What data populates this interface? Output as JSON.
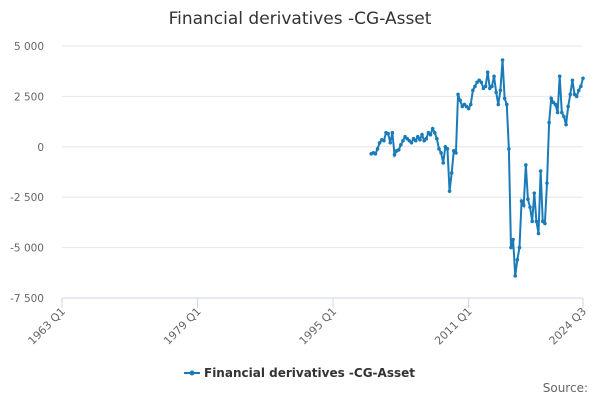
{
  "chart_data": {
    "type": "line",
    "title": "Financial derivatives -CG-Asset",
    "categories": [
      "1963 Q1",
      null,
      null,
      null,
      null,
      null,
      null,
      null,
      null,
      null,
      null,
      null,
      null,
      null,
      null,
      null,
      null,
      null,
      null,
      null,
      null,
      null,
      null,
      null,
      null,
      null,
      null,
      null,
      null,
      null,
      null,
      null,
      null,
      null,
      null,
      null,
      null,
      null,
      null,
      null,
      null,
      null,
      null,
      null,
      null,
      null,
      null,
      null,
      null,
      null,
      null,
      null,
      null,
      null,
      null,
      null,
      null,
      null,
      null,
      null,
      null,
      null,
      null,
      null,
      "1979 Q1",
      null,
      null,
      null,
      null,
      null,
      null,
      null,
      null,
      null,
      null,
      null,
      null,
      null,
      null,
      null,
      null,
      null,
      null,
      null,
      null,
      null,
      null,
      null,
      null,
      null,
      null,
      null,
      null,
      null,
      null,
      null,
      null,
      null,
      null,
      null,
      null,
      null,
      null,
      null,
      null,
      null,
      null,
      null,
      null,
      null,
      null,
      null,
      null,
      null,
      null,
      null,
      null,
      null,
      null,
      null,
      null,
      null,
      null,
      null,
      null,
      null,
      null,
      null,
      "1995 Q1",
      null,
      null,
      null,
      null,
      null,
      null,
      null,
      null,
      null,
      null,
      null,
      null,
      null,
      null,
      null,
      null,
      null,
      null,
      null,
      null,
      null,
      null,
      null,
      null,
      null,
      null,
      null,
      null,
      null,
      null,
      null,
      null,
      null,
      null,
      null,
      null,
      null,
      null,
      null,
      null,
      null,
      null,
      null,
      null,
      null,
      null,
      null,
      null,
      null,
      null,
      null,
      null,
      null,
      null,
      null,
      null,
      null,
      null,
      null,
      null,
      null,
      null,
      null,
      "2011 Q1",
      null,
      null,
      null,
      null,
      null,
      null,
      null,
      null,
      null,
      null,
      null,
      null,
      null,
      null,
      null,
      null,
      null,
      null,
      null,
      null,
      null,
      null,
      null,
      null,
      null,
      null,
      null,
      null,
      null,
      null,
      null,
      null,
      null,
      null,
      null,
      null,
      null,
      null,
      null,
      null,
      null,
      null,
      null,
      null,
      null,
      null,
      null,
      null,
      null,
      null,
      null,
      null,
      null,
      "2024 Q3"
    ],
    "series": [
      {
        "name": "Financial derivatives -CG-Asset",
        "color": "#1a7bb9",
        "values": [
          null,
          null,
          null,
          null,
          null,
          null,
          null,
          null,
          null,
          null,
          null,
          null,
          null,
          null,
          null,
          null,
          null,
          null,
          null,
          null,
          null,
          null,
          null,
          null,
          null,
          null,
          null,
          null,
          null,
          null,
          null,
          null,
          null,
          null,
          null,
          null,
          null,
          null,
          null,
          null,
          null,
          null,
          null,
          null,
          null,
          null,
          null,
          null,
          null,
          null,
          null,
          null,
          null,
          null,
          null,
          null,
          null,
          null,
          null,
          null,
          null,
          null,
          null,
          null,
          null,
          null,
          null,
          null,
          null,
          null,
          null,
          null,
          null,
          null,
          null,
          null,
          null,
          null,
          null,
          null,
          null,
          null,
          null,
          null,
          null,
          null,
          null,
          null,
          null,
          null,
          null,
          null,
          null,
          null,
          null,
          null,
          null,
          null,
          null,
          null,
          null,
          null,
          null,
          null,
          null,
          null,
          null,
          null,
          null,
          null,
          null,
          null,
          null,
          null,
          null,
          null,
          null,
          null,
          null,
          null,
          null,
          null,
          null,
          null,
          null,
          null,
          null,
          null,
          null,
          null,
          null,
          null,
          null,
          null,
          null,
          null,
          null,
          null,
          null,
          null,
          null,
          null,
          null,
          null,
          null,
          null,
          -350,
          -300,
          -350,
          -100,
          200,
          350,
          300,
          700,
          650,
          200,
          700,
          -400,
          -200,
          -150,
          100,
          300,
          500,
          400,
          300,
          200,
          400,
          300,
          500,
          350,
          600,
          300,
          400,
          700,
          600,
          900,
          700,
          400,
          -100,
          -300,
          -800,
          0,
          -100,
          -2200,
          -1300,
          -200,
          -300,
          2600,
          2300,
          2000,
          2100,
          2000,
          1900,
          2100,
          2800,
          3000,
          3200,
          3300,
          3200,
          2900,
          3000,
          3700,
          2900,
          3000,
          3500,
          2700,
          2100,
          2800,
          4300,
          2400,
          2100,
          -100,
          -5000,
          -4600,
          -6400,
          -5600,
          -5000,
          -2700,
          -2900,
          -900,
          -2600,
          -3000,
          -3700,
          -2300,
          -3700,
          -4300,
          -1200,
          -3700,
          -3800,
          -1800,
          1200,
          2400,
          2200,
          2100,
          1700,
          3500,
          1700,
          1500,
          1100,
          2000,
          2600,
          3300,
          2600,
          2500,
          2800,
          3000,
          3400
        ]
      }
    ],
    "ylim": [
      -7500,
      5000
    ],
    "yticks": [
      {
        "value": -7500,
        "label": "-7 500"
      },
      {
        "value": -5000,
        "label": "-5 000"
      },
      {
        "value": -2500,
        "label": "-2 500"
      },
      0,
      {
        "value": 2500,
        "label": "2 500"
      },
      {
        "value": 5000,
        "label": "5 000"
      }
    ],
    "grid": true,
    "source": "Source:"
  }
}
